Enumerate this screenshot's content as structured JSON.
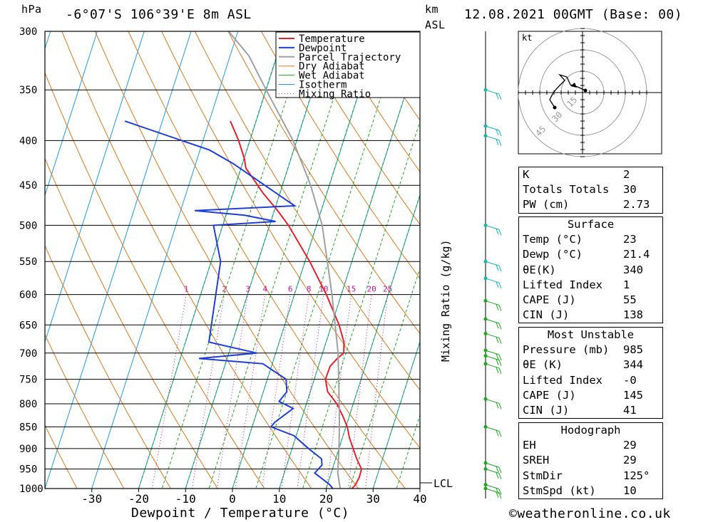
{
  "header": {
    "unit_left": "hPa",
    "location": "-6°07'S 106°39'E 8m ASL",
    "unit_km": "km",
    "unit_asl": "ASL",
    "datetime": "12.08.2021 00GMT (Base: 00)"
  },
  "footer": {
    "xlabel": "Dewpoint / Temperature (°C)",
    "copyright": "©weatheronline.co.uk",
    "mixing_ratio_label": "Mixing Ratio (g/kg)",
    "lcl_label": "LCL",
    "hodo_unit": "kt"
  },
  "colors": {
    "temperature": "#e8202a",
    "dewpoint": "#1f3fd8",
    "parcel": "#a0a0a0",
    "dry_adiabat": "#d8781e",
    "wet_adiabat": "#1ca81c",
    "isotherm": "#1e9ae0",
    "mixing_ratio": "#c01890"
  },
  "chart_data": {
    "type": "line",
    "title": "-6°07'S 106°39'E 8m ASL",
    "xlabel": "Dewpoint / Temperature (°C)",
    "ylabel": "hPa",
    "xlim": [
      -40,
      40
    ],
    "ylim": [
      1000,
      300
    ],
    "x_ticks": [
      -30,
      -20,
      -10,
      0,
      10,
      20,
      30,
      40
    ],
    "p_ticks": [
      300,
      350,
      400,
      450,
      500,
      550,
      600,
      650,
      700,
      750,
      800,
      850,
      900,
      950,
      1000
    ],
    "legend": [
      "Temperature",
      "Dewpoint",
      "Parcel Trajectory",
      "Dry Adiabat",
      "Wet Adiabat",
      "Isotherm",
      "Mixing Ratio"
    ],
    "legend_position": "top-left",
    "mixing_ratio_labels": [
      "1",
      "2",
      "3",
      "4",
      "6",
      "8",
      "10",
      "15",
      "20",
      "25"
    ],
    "mixing_ratio_values": [
      1,
      2,
      3,
      4,
      6,
      8,
      10,
      15,
      20,
      25
    ],
    "series": [
      {
        "name": "Temperature",
        "p": [
          1000,
          990,
          970,
          950,
          925,
          900,
          875,
          850,
          825,
          800,
          775,
          750,
          725,
          710,
          700,
          680,
          650,
          600,
          550,
          500,
          480,
          460,
          430,
          420,
          400,
          380
        ],
        "t": [
          25.5,
          26,
          26.3,
          26.2,
          24.5,
          23,
          21.5,
          20.3,
          18.5,
          16.5,
          13.7,
          12.4,
          12.5,
          13.5,
          14.5,
          13.8,
          11.6,
          6.8,
          1,
          -6,
          -9.5,
          -13.5,
          -19,
          -19.9,
          -22.4,
          -25.5
        ]
      },
      {
        "name": "Dewpoint",
        "p": [
          1000,
          990,
          960,
          940,
          925,
          900,
          870,
          850,
          840,
          810,
          795,
          775,
          750,
          720,
          710,
          700,
          680,
          550,
          500,
          495,
          487,
          481,
          475,
          425,
          410,
          380
        ],
        "t": [
          21.4,
          20.5,
          16.5,
          17.5,
          17,
          13.5,
          9.5,
          4,
          4.5,
          7.5,
          4,
          5,
          4,
          -2,
          -16,
          -4,
          -15,
          -18,
          -22,
          -9,
          -16,
          -27,
          -6,
          -22,
          -28,
          -48
        ]
      },
      {
        "name": "Parcel Trajectory",
        "p": [
          1000,
          960,
          900,
          850,
          800,
          700,
          600,
          500,
          450,
          400,
          350,
          320,
          300
        ],
        "t": [
          23,
          21.4,
          20,
          18.6,
          17,
          13.3,
          8,
          1.2,
          -4,
          -10.8,
          -20,
          -26,
          -32
        ]
      }
    ]
  },
  "hodograph": {
    "rings": [
      "15",
      "30",
      "45"
    ]
  },
  "table": {
    "general": [
      {
        "k": "K",
        "v": "2"
      },
      {
        "k": "Totals Totals",
        "v": "30"
      },
      {
        "k": "PW (cm)",
        "v": "2.73"
      }
    ],
    "surface": {
      "title": "Surface",
      "rows": [
        {
          "k": "Temp (°C)",
          "v": "23"
        },
        {
          "k": "Dewp (°C)",
          "v": "21.4"
        },
        {
          "k": "θE(K)",
          "v": "340"
        },
        {
          "k": "Lifted Index",
          "v": "1"
        },
        {
          "k": "CAPE (J)",
          "v": "55"
        },
        {
          "k": "CIN (J)",
          "v": "138"
        }
      ]
    },
    "most_unstable": {
      "title": "Most Unstable",
      "rows": [
        {
          "k": "Pressure (mb)",
          "v": "985"
        },
        {
          "k": "θE (K)",
          "v": "344"
        },
        {
          "k": "Lifted Index",
          "v": "-0"
        },
        {
          "k": "CAPE (J)",
          "v": "145"
        },
        {
          "k": "CIN (J)",
          "v": "41"
        }
      ]
    },
    "hodograph": {
      "title": "Hodograph",
      "rows": [
        {
          "k": "EH",
          "v": "29"
        },
        {
          "k": "SREH",
          "v": "29"
        },
        {
          "k": "StmDir",
          "v": "125°"
        },
        {
          "k": "StmSpd (kt)",
          "v": "10"
        }
      ]
    }
  }
}
